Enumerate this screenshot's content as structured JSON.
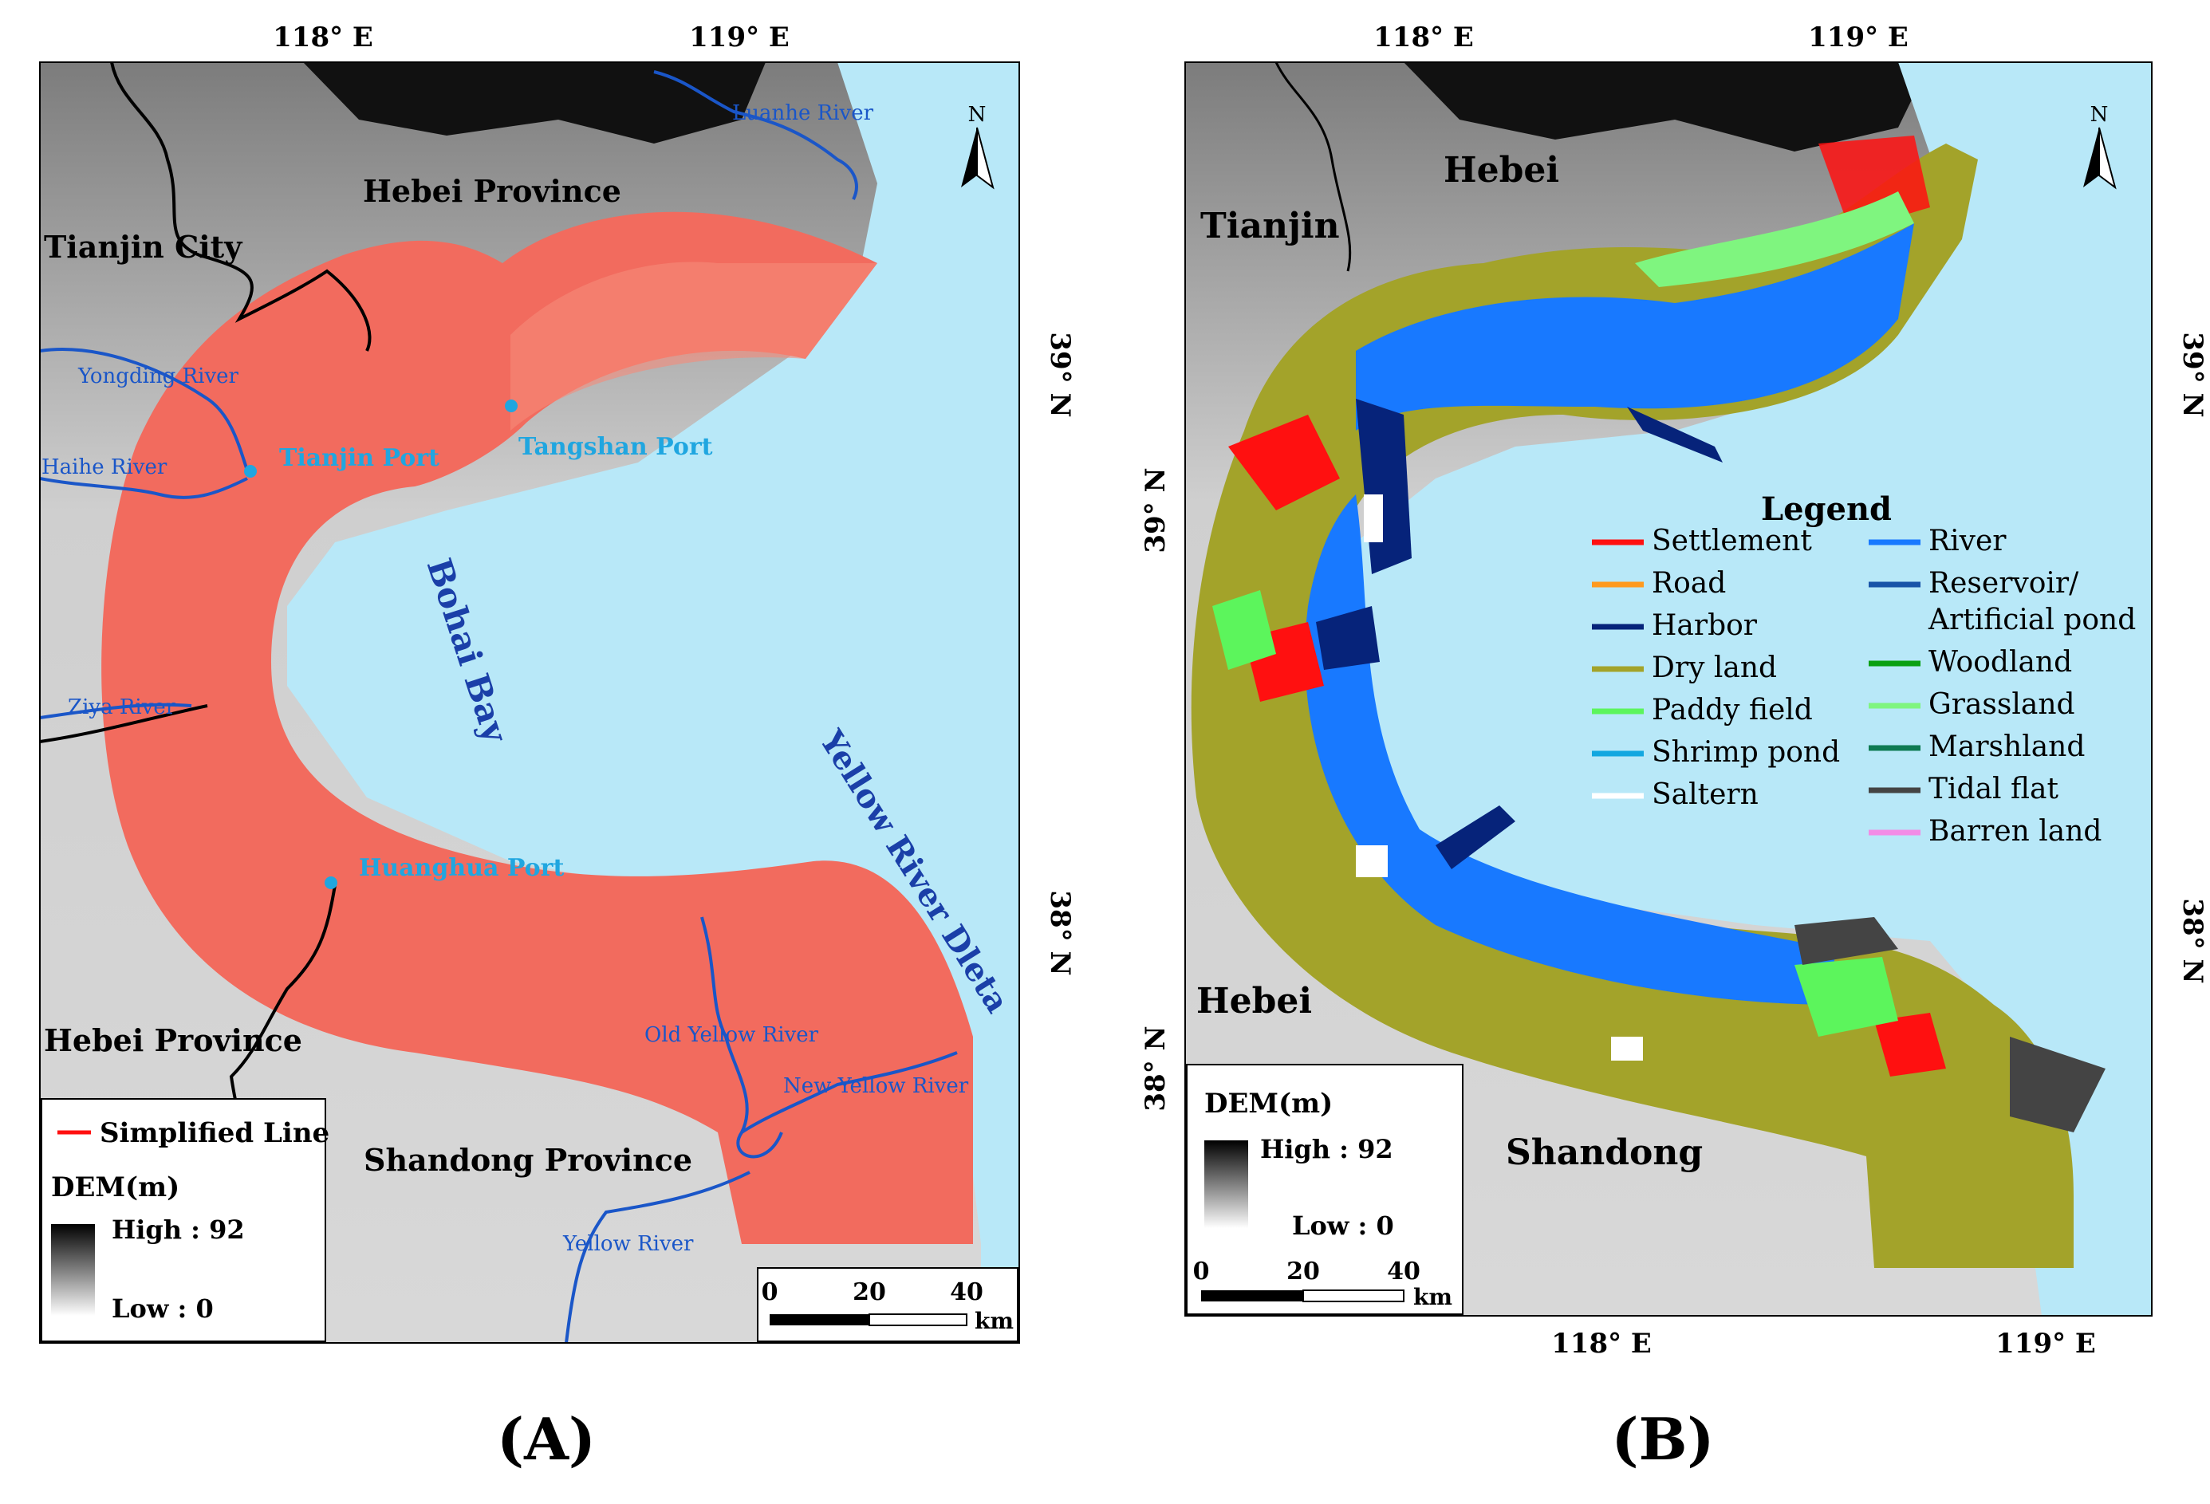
{
  "panel_a": {
    "caption": "(A)",
    "axis_labels": {
      "top_lon_1": "118° E",
      "top_lon_2": "119° E",
      "right_lat_1": "39° N",
      "right_lat_2": "38° N"
    },
    "places": {
      "hebei_north": "Hebei Province",
      "tianjin_city": "Tianjin City",
      "hebei_south": "Hebei Province",
      "shandong": "Shandong Province",
      "bohai_bay": "Bohai Bay",
      "yellow_river_delta": "Yellow River Dleta"
    },
    "rivers": {
      "luanhe": "Luanhe River",
      "yongding": "Yongding River",
      "haihe": "Haihe River",
      "ziya": "Ziya River",
      "old_yellow": "Old Yellow River",
      "new_yellow": "New Yellow River",
      "yellow": "Yellow River"
    },
    "ports": {
      "tianjin": "Tianjin Port",
      "tangshan": "Tangshan Port",
      "huanghua": "Huanghua Port"
    },
    "legend": {
      "simplified_line": "Simplified Line",
      "dem_title": "DEM(m)",
      "high": "High : 92",
      "low": "Low : 0"
    },
    "scale": {
      "t0": "0",
      "t1": "20",
      "t2": "40",
      "unit": "km"
    },
    "north": "N"
  },
  "panel_b": {
    "caption": "(B)",
    "axis_labels": {
      "top_lon_1": "118° E",
      "top_lon_2": "119° E",
      "bottom_lon_1": "118° E",
      "bottom_lon_2": "119° E",
      "left_lat_1": "39° N",
      "left_lat_2": "38° N",
      "right_lat_1": "39° N",
      "right_lat_2": "38° N"
    },
    "places": {
      "hebei_north": "Hebei",
      "tianjin": "Tianjin",
      "hebei_south": "Hebei",
      "shandong": "Shandong"
    },
    "legend": {
      "title": "Legend",
      "items_left": [
        {
          "label": "Settlement",
          "color": "#ff1010"
        },
        {
          "label": "Road",
          "color": "#ff9a1e"
        },
        {
          "label": "Harbor",
          "color": "#06237a"
        },
        {
          "label": "Dry land",
          "color": "#a3a32a"
        },
        {
          "label": "Paddy field",
          "color": "#5cf55c"
        },
        {
          "label": "Shrimp pond",
          "color": "#12a7e0"
        },
        {
          "label": "Saltern",
          "color": "#ffffff"
        }
      ],
      "items_right": [
        {
          "label": "River",
          "color": "#1879ff"
        },
        {
          "label": "Reservoir/",
          "label2": "Artificial pond",
          "color": "#1954a8"
        },
        {
          "label": "Woodland",
          "color": "#0aa012"
        },
        {
          "label": "Grassland",
          "color": "#7ff57f"
        },
        {
          "label": "Marshland",
          "color": "#0e7a52"
        },
        {
          "label": "Tidal flat",
          "color": "#444444"
        },
        {
          "label": "Barren land",
          "color": "#f28ce6"
        }
      ]
    },
    "dem_legend": {
      "title": "DEM(m)",
      "high": "High : 92",
      "low": "Low : 0"
    },
    "scale": {
      "t0": "0",
      "t1": "20",
      "t2": "40",
      "unit": "km"
    },
    "north": "N"
  },
  "colors": {
    "sea": "#b8e8f8",
    "buffer": "#f26b5e",
    "river_line": "#1a56c8",
    "port": "#20a6e0",
    "border": "#000000",
    "land_gray": "#c8c8c8"
  }
}
